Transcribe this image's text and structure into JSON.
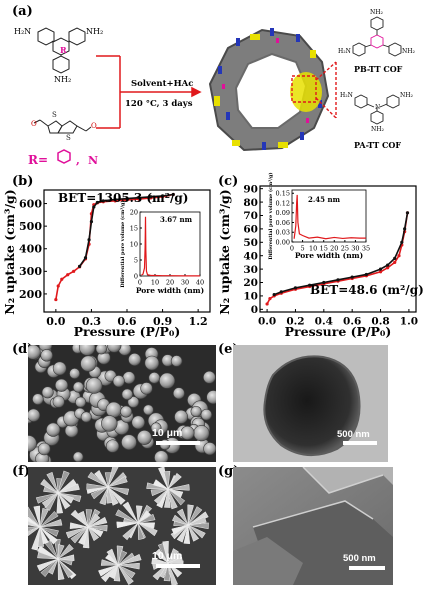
{
  "panel_a": {
    "label": "(a)",
    "reaction": {
      "line1": "Solvent+HAc",
      "line2": "120 °C, 3 days"
    },
    "r_definition": {
      "label": "R=",
      "option_sep": ",",
      "option_n": "N"
    },
    "monomer_labels": {
      "R": "R",
      "nh2": "NH₂",
      "h2n": "H₂N"
    },
    "product_pb": "PB-TT COF",
    "product_pa": "PA-TT COF"
  },
  "panel_b": {
    "label": "(b)",
    "bet": "BET=1305.3 (m²/g)",
    "inset_annotation": "3.67 nm"
  },
  "panel_c": {
    "label": "(c)",
    "bet": "BET=48.6 (m²/g)",
    "inset_annotation": "2.45 nm"
  },
  "panel_d": {
    "label": "(d)",
    "scale": "10 μm"
  },
  "panel_e": {
    "label": "(e)",
    "scale": "500 nm"
  },
  "panel_f": {
    "label": "(f)",
    "scale": "10 μm"
  },
  "panel_g": {
    "label": "(g)",
    "scale": "500 nm"
  },
  "colors": {
    "curve": "#e0191c",
    "highlight": "#e8e000",
    "blue_linker": "#2436b8",
    "magenta": "#e0109a"
  },
  "chart_data": [
    {
      "type": "line",
      "id": "b-main",
      "xlabel": "Pressure (P/P₀)",
      "ylabel": "N₂ uptake (cm³/g)",
      "xlim": [
        -0.1,
        1.3
      ],
      "ylim": [
        120,
        660
      ],
      "xticks": [
        "0.0",
        "0.3",
        "0.6",
        "0.9",
        "1.2"
      ],
      "yticks": [
        "200",
        "300",
        "400",
        "500",
        "600"
      ],
      "series": [
        {
          "x": [
            0.0,
            0.02,
            0.05,
            0.1,
            0.15,
            0.2,
            0.25,
            0.28,
            0.3,
            0.32,
            0.35,
            0.4,
            0.5,
            0.6,
            0.7,
            0.8,
            0.9,
            0.99
          ],
          "y": [
            175,
            235,
            265,
            285,
            300,
            320,
            355,
            420,
            555,
            595,
            603,
            608,
            612,
            616,
            620,
            625,
            630,
            640
          ]
        },
        {
          "x": [
            0.99,
            0.9,
            0.8,
            0.7,
            0.6,
            0.5,
            0.4,
            0.35,
            0.32,
            0.3,
            0.28,
            0.25,
            0.2
          ],
          "y": [
            640,
            634,
            630,
            626,
            622,
            618,
            612,
            605,
            585,
            520,
            440,
            360,
            322
          ]
        }
      ]
    },
    {
      "type": "line",
      "id": "b-inset",
      "xlabel": "Pore width (nm)",
      "ylabel": "Differential pore volume (cm³/g)",
      "xlim": [
        0,
        40
      ],
      "ylim": [
        0,
        20
      ],
      "xticks": [
        "0",
        "10",
        "20",
        "30",
        "40"
      ],
      "yticks": [
        "0",
        "5",
        "10",
        "15",
        "20"
      ],
      "series": [
        {
          "x": [
            1,
            2,
            3,
            3.4,
            3.67,
            3.9,
            4.3,
            5,
            7,
            10,
            15,
            20,
            30,
            40
          ],
          "y": [
            0.3,
            0.6,
            2.5,
            9,
            18.5,
            8,
            1.5,
            0.4,
            0.2,
            0.15,
            0.1,
            0.1,
            0.05,
            0.05
          ]
        }
      ]
    },
    {
      "type": "line",
      "id": "c-main",
      "xlabel": "Pressure (P/P₀)",
      "ylabel": "N₂ uptake (cm³/g)",
      "xlim": [
        -0.05,
        1.05
      ],
      "ylim": [
        -2,
        92
      ],
      "xticks": [
        "0.0",
        "0.2",
        "0.4",
        "0.6",
        "0.8",
        "1.0"
      ],
      "yticks": [
        "0",
        "10",
        "20",
        "30",
        "40",
        "50",
        "60",
        "70",
        "80",
        "90"
      ],
      "series": [
        {
          "x": [
            0.0,
            0.02,
            0.05,
            0.1,
            0.2,
            0.3,
            0.4,
            0.5,
            0.6,
            0.7,
            0.8,
            0.85,
            0.9,
            0.93,
            0.95,
            0.97,
            0.99
          ],
          "y": [
            4,
            8,
            10,
            12,
            15,
            17,
            19,
            21,
            23,
            25,
            28,
            31,
            35,
            40,
            48,
            58,
            72
          ]
        },
        {
          "x": [
            0.99,
            0.97,
            0.95,
            0.9,
            0.85,
            0.8,
            0.7,
            0.6,
            0.5,
            0.4,
            0.3,
            0.2,
            0.1,
            0.05
          ],
          "y": [
            72,
            60,
            50,
            38,
            33,
            30,
            26,
            24,
            22,
            20,
            18,
            16,
            13,
            11
          ]
        }
      ]
    },
    {
      "type": "line",
      "id": "c-inset",
      "xlabel": "Pore width (nm)",
      "ylabel": "Differential pore volume (cm³/g)",
      "xlim": [
        0,
        35
      ],
      "ylim": [
        0,
        0.16
      ],
      "xticks": [
        "0",
        "5",
        "10",
        "15",
        "20",
        "25",
        "30",
        "35"
      ],
      "yticks": [
        "0.00",
        "0.03",
        "0.06",
        "0.09",
        "0.12",
        "0.15"
      ],
      "series": [
        {
          "x": [
            1,
            1.8,
            2.2,
            2.45,
            2.8,
            3.5,
            5,
            8,
            12,
            16,
            20,
            24,
            28,
            32,
            35
          ],
          "y": [
            0.01,
            0.05,
            0.12,
            0.145,
            0.06,
            0.025,
            0.02,
            0.012,
            0.015,
            0.01,
            0.014,
            0.011,
            0.013,
            0.012,
            0.012
          ]
        }
      ]
    }
  ]
}
